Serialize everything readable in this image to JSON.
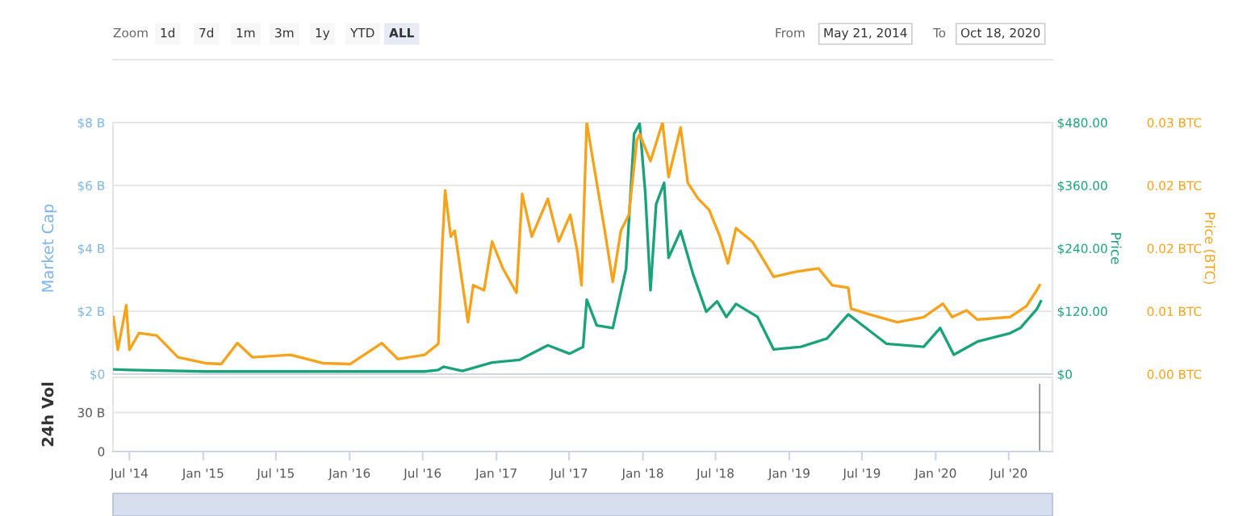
{
  "chart_data": [
    {
      "type": "line",
      "ylabel": "Market Cap",
      "y2label": "Price",
      "y3label": "Price (BTC)",
      "annotations": [
        "Zoom",
        "1d",
        "7d",
        "1m",
        "3m",
        "1y",
        "YTD",
        "ALL",
        "From",
        "May 21, 2014",
        "To",
        "Oct 18, 2020"
      ],
      "xlim": [
        "2014-05-21",
        "2020-10-18"
      ],
      "tick_labels": "y",
      "grid": "y",
      "ylim": [
        0,
        8
      ],
      "yticks": [
        {
          "value": 0,
          "label": "$0"
        },
        {
          "value": 2,
          "label": "$2 B"
        },
        {
          "value": 4,
          "label": "$4 B"
        },
        {
          "value": 6,
          "label": "$6 B"
        },
        {
          "value": 8,
          "label": "$8 B"
        }
      ],
      "y2lim": [
        0,
        480
      ],
      "y2ticks": [
        {
          "value": 0,
          "label": "$0"
        },
        {
          "value": 120,
          "label": "$120.00"
        },
        {
          "value": 240,
          "label": "$240.00"
        },
        {
          "value": 360,
          "label": "$360.00"
        },
        {
          "value": 480,
          "label": "$480.00"
        }
      ],
      "y3lim": [
        0,
        0.03
      ],
      "y3ticks": [
        {
          "value": 0,
          "label": "0.00 BTC"
        },
        {
          "value": 0.0075,
          "label": "0.01 BTC"
        },
        {
          "value": 0.015,
          "label": "0.02 BTC"
        },
        {
          "value": 0.0225,
          "label": "0.02 BTC"
        },
        {
          "value": 0.03,
          "label": "0.03 BTC"
        }
      ],
      "series": [
        {
          "axis": "y3",
          "color": "#f7a21b",
          "x": [
            "2014-05-22",
            "2014-06-02",
            "2014-06-23",
            "2014-07-01",
            "2014-07-25",
            "2014-09-07",
            "2014-10-30",
            "2015-01-06",
            "2015-02-15",
            "2015-03-27",
            "2015-05-04",
            "2015-08-07",
            "2015-10-26",
            "2016-01-02",
            "2016-03-21",
            "2016-04-30",
            "2016-07-06",
            "2016-08-09",
            "2016-08-18",
            "2016-08-26",
            "2016-09-09",
            "2016-09-19",
            "2016-10-22",
            "2016-11-04",
            "2016-12-01",
            "2016-12-21",
            "2017-01-17",
            "2017-02-20",
            "2017-03-06",
            "2017-03-30",
            "2017-05-09",
            "2017-06-05",
            "2017-07-04",
            "2017-07-22",
            "2017-08-01",
            "2017-08-14",
            "2017-09-01",
            "2017-09-28",
            "2017-10-18",
            "2017-11-07",
            "2017-11-27",
            "2017-12-17",
            "2017-12-24",
            "2018-01-20",
            "2018-02-19",
            "2018-03-06",
            "2018-04-05",
            "2018-04-23",
            "2018-05-19",
            "2018-06-15",
            "2018-07-12",
            "2018-08-01",
            "2018-08-21",
            "2018-10-01",
            "2018-11-23",
            "2019-01-16",
            "2019-03-15",
            "2019-04-18",
            "2019-05-28",
            "2019-06-04",
            "2019-07-21",
            "2019-09-27",
            "2019-12-02",
            "2020-01-19",
            "2020-02-11",
            "2020-03-18",
            "2020-04-14",
            "2020-07-04",
            "2020-08-14",
            "2020-09-09",
            "2020-09-16"
          ],
          "values": [
            0.0068,
            0.0029,
            0.0082,
            0.0029,
            0.0049,
            0.0046,
            0.002,
            0.0013,
            0.0012,
            0.0037,
            0.002,
            0.0023,
            0.0013,
            0.0012,
            0.0037,
            0.0018,
            0.0023,
            0.0036,
            0.0145,
            0.0219,
            0.0164,
            0.0171,
            0.0062,
            0.0106,
            0.01,
            0.0158,
            0.0126,
            0.0097,
            0.0215,
            0.0164,
            0.0209,
            0.0158,
            0.019,
            0.0145,
            0.0106,
            0.03,
            0.0248,
            0.0171,
            0.011,
            0.0171,
            0.019,
            0.0279,
            0.0286,
            0.0254,
            0.03,
            0.0235,
            0.0294,
            0.0228,
            0.0209,
            0.0196,
            0.0164,
            0.0132,
            0.0174,
            0.0158,
            0.0116,
            0.0122,
            0.0126,
            0.0106,
            0.0103,
            0.0078,
            0.0071,
            0.0062,
            0.0068,
            0.0084,
            0.0068,
            0.0076,
            0.0065,
            0.0068,
            0.0081,
            0.01,
            0.0106
          ]
        },
        {
          "axis": "y2",
          "color": "#1aa37a",
          "x": [
            "2014-05-22",
            "2014-07-01",
            "2015-01-06",
            "2016-01-02",
            "2016-07-06",
            "2016-08-09",
            "2016-08-22",
            "2016-10-08",
            "2016-12-21",
            "2017-02-27",
            "2017-05-09",
            "2017-07-02",
            "2017-08-05",
            "2017-08-14",
            "2017-09-08",
            "2017-10-18",
            "2017-11-20",
            "2017-12-10",
            "2017-12-24",
            "2018-01-07",
            "2018-01-20",
            "2018-02-03",
            "2018-02-23",
            "2018-03-06",
            "2018-04-05",
            "2018-05-06",
            "2018-06-08",
            "2018-07-05",
            "2018-07-28",
            "2018-08-21",
            "2018-10-14",
            "2018-11-23",
            "2019-01-30",
            "2019-04-05",
            "2019-05-28",
            "2019-06-24",
            "2019-08-31",
            "2019-12-02",
            "2020-01-12",
            "2020-02-15",
            "2020-04-14",
            "2020-07-04",
            "2020-07-30",
            "2020-09-09",
            "2020-09-19"
          ],
          "values": [
            9,
            8,
            5,
            5,
            5,
            8,
            14,
            6,
            22,
            27,
            55,
            39,
            52,
            142,
            93,
            88,
            201,
            458,
            478,
            345,
            160,
            324,
            365,
            222,
            273,
            191,
            119,
            139,
            109,
            134,
            109,
            47,
            52,
            68,
            114,
            98,
            58,
            52,
            88,
            37,
            62,
            78,
            88,
            124,
            139
          ]
        }
      ]
    },
    {
      "type": "bar",
      "ylabel": "24h Vol",
      "grid": "y",
      "xlim": [
        "2014-05-21",
        "2020-10-18"
      ],
      "xticks": [
        {
          "value": "2014-07-01",
          "label": "Jul '14"
        },
        {
          "value": "2015-01-01",
          "label": "Jan '15"
        },
        {
          "value": "2015-07-01",
          "label": "Jul '15"
        },
        {
          "value": "2016-01-01",
          "label": "Jan '16"
        },
        {
          "value": "2016-07-01",
          "label": "Jul '16"
        },
        {
          "value": "2017-01-01",
          "label": "Jan '17"
        },
        {
          "value": "2017-07-01",
          "label": "Jul '17"
        },
        {
          "value": "2018-01-01",
          "label": "Jan '18"
        },
        {
          "value": "2018-07-01",
          "label": "Jul '18"
        },
        {
          "value": "2019-01-01",
          "label": "Jan '19"
        },
        {
          "value": "2019-07-01",
          "label": "Jul '19"
        },
        {
          "value": "2020-01-01",
          "label": "Jan '20"
        },
        {
          "value": "2020-07-01",
          "label": "Jul '20"
        }
      ],
      "ylim": [
        0,
        57
      ],
      "yticks": [
        0,
        {
          "value": 30,
          "label": "30 B"
        }
      ],
      "series": [
        {
          "color": "#666666",
          "x": [
            "2020-09-16"
          ],
          "values": [
            52
          ]
        }
      ]
    }
  ]
}
